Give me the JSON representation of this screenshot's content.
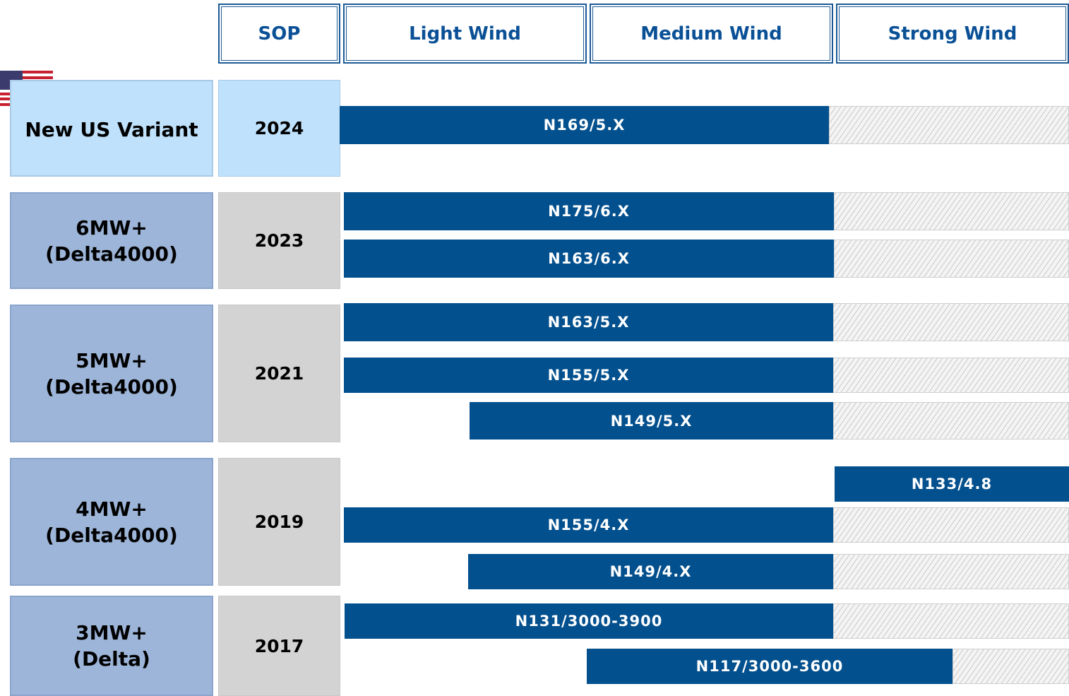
{
  "header": {
    "columns": [
      "SOP",
      "Light Wind",
      "Medium Wind",
      "Strong Wind"
    ]
  },
  "rows": [
    {
      "label": [
        "New US Variant"
      ],
      "sop": "2024",
      "bars": [
        {
          "label": "N169/5.X"
        }
      ]
    },
    {
      "label": [
        "6MW+",
        "(Delta4000)"
      ],
      "sop": "2023",
      "bars": [
        {
          "label": "N175/6.X"
        },
        {
          "label": "N163/6.X"
        }
      ]
    },
    {
      "label": [
        "5MW+",
        "(Delta4000)"
      ],
      "sop": "2021",
      "bars": [
        {
          "label": "N163/5.X"
        },
        {
          "label": "N155/5.X"
        },
        {
          "label": "N149/5.X"
        }
      ]
    },
    {
      "label": [
        "4MW+",
        "(Delta4000)"
      ],
      "sop": "2019",
      "bars": [
        {
          "label": "N133/4.8"
        },
        {
          "label": "N155/4.X"
        },
        {
          "label": "N149/4.X"
        }
      ]
    },
    {
      "label": [
        "3MW+",
        "(Delta)"
      ],
      "sop": "2017",
      "bars": [
        {
          "label": "N131/3000-3900"
        },
        {
          "label": "N117/3000-3600"
        }
      ]
    }
  ]
}
